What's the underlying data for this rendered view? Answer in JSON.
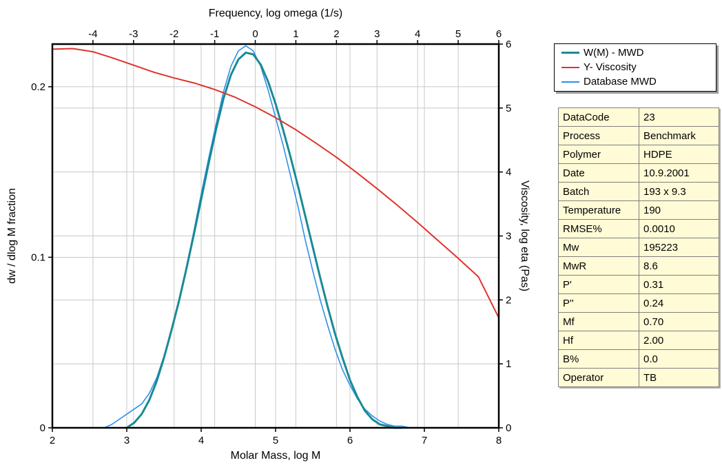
{
  "chart_data": {
    "type": "line",
    "top_axis": {
      "label": "Frequency, log omega (1/s)",
      "range": [
        -5,
        6
      ],
      "ticks": [
        "-4",
        "-3",
        "-2",
        "-1",
        "0",
        "1",
        "2",
        "3",
        "4",
        "5",
        "6"
      ]
    },
    "x_axis": {
      "label": "Molar Mass, log M",
      "range": [
        2,
        8
      ],
      "ticks": [
        "2",
        "3",
        "4",
        "5",
        "6",
        "7",
        "8"
      ]
    },
    "y_left": {
      "label": "dw / dlog M  fraction",
      "range": [
        0,
        0.225
      ],
      "ticks": [
        "0",
        "0.1",
        "0.2"
      ]
    },
    "y_right": {
      "label": "Viscosity, log eta (Pas)",
      "range": [
        0,
        6
      ],
      "ticks": [
        "0",
        "1",
        "2",
        "3",
        "4",
        "5",
        "6"
      ]
    },
    "grid": true,
    "legend_position": "top-right",
    "series": [
      {
        "name": "W(M) - MWD",
        "axis": "left",
        "color": "#1a8a94",
        "x": [
          3.0,
          3.1,
          3.2,
          3.3,
          3.4,
          3.5,
          3.6,
          3.7,
          3.8,
          3.9,
          4.0,
          4.1,
          4.2,
          4.3,
          4.4,
          4.5,
          4.6,
          4.7,
          4.8,
          4.9,
          5.0,
          5.1,
          5.2,
          5.3,
          5.4,
          5.5,
          5.6,
          5.7,
          5.8,
          5.9,
          6.0,
          6.1,
          6.2,
          6.3,
          6.4,
          6.5,
          6.6,
          6.7
        ],
        "y": [
          0.0,
          0.003,
          0.008,
          0.016,
          0.027,
          0.041,
          0.057,
          0.074,
          0.093,
          0.113,
          0.134,
          0.155,
          0.175,
          0.193,
          0.207,
          0.216,
          0.22,
          0.219,
          0.213,
          0.203,
          0.19,
          0.175,
          0.159,
          0.142,
          0.124,
          0.106,
          0.088,
          0.071,
          0.055,
          0.041,
          0.028,
          0.018,
          0.01,
          0.005,
          0.002,
          0.001,
          0.0,
          0.0
        ]
      },
      {
        "name": "Y- Viscosity",
        "axis": "right",
        "color": "#e0322a",
        "x": [
          -5,
          -4.5,
          -4,
          -3.5,
          -3,
          -2.5,
          -2,
          -1.5,
          -1,
          -0.5,
          0,
          0.5,
          1,
          1.5,
          2,
          2.5,
          3,
          3.5,
          4,
          4.5,
          5,
          5.5,
          6
        ],
        "y": [
          5.92,
          5.93,
          5.88,
          5.78,
          5.67,
          5.56,
          5.47,
          5.39,
          5.29,
          5.17,
          5.02,
          4.85,
          4.66,
          4.45,
          4.23,
          3.99,
          3.74,
          3.48,
          3.21,
          2.93,
          2.65,
          2.36,
          1.72
        ]
      },
      {
        "name": "Database MWD",
        "axis": "left",
        "color": "#2c8fe8",
        "x": [
          2.7,
          2.8,
          2.9,
          3.0,
          3.1,
          3.2,
          3.3,
          3.4,
          3.5,
          3.6,
          3.7,
          3.8,
          3.9,
          4.0,
          4.1,
          4.2,
          4.3,
          4.4,
          4.5,
          4.6,
          4.7,
          4.8,
          4.9,
          5.0,
          5.1,
          5.2,
          5.3,
          5.4,
          5.5,
          5.6,
          5.7,
          5.8,
          5.9,
          6.0,
          6.1,
          6.2,
          6.3,
          6.4,
          6.5,
          6.6,
          6.7,
          6.8,
          6.9,
          7.0
        ],
        "y": [
          0.0,
          0.002,
          0.005,
          0.008,
          0.011,
          0.014,
          0.02,
          0.029,
          0.042,
          0.058,
          0.075,
          0.094,
          0.115,
          0.137,
          0.158,
          0.178,
          0.197,
          0.212,
          0.221,
          0.224,
          0.221,
          0.212,
          0.198,
          0.182,
          0.166,
          0.148,
          0.13,
          0.11,
          0.092,
          0.075,
          0.06,
          0.046,
          0.034,
          0.025,
          0.017,
          0.011,
          0.007,
          0.004,
          0.002,
          0.001,
          0.001,
          0.0,
          0.0,
          0.0
        ]
      }
    ]
  },
  "legend": {
    "items": [
      {
        "label": "W(M) - MWD",
        "color": "#1a8a94"
      },
      {
        "label": "Y- Viscosity",
        "color": "#e0322a"
      },
      {
        "label": "Database MWD",
        "color": "#2c8fe8"
      }
    ]
  },
  "info_table": [
    [
      "DataCode",
      "23"
    ],
    [
      "Process",
      "Benchmark"
    ],
    [
      "Polymer",
      "HDPE"
    ],
    [
      "Date",
      "10.9.2001"
    ],
    [
      "Batch",
      "193 x 9.3"
    ],
    [
      "Temperature",
      "190"
    ],
    [
      "RMSE%",
      "0.0010"
    ],
    [
      "Mw",
      "195223"
    ],
    [
      "MwR",
      "8.6"
    ],
    [
      "P'",
      "0.31"
    ],
    [
      "P''",
      "0.24"
    ],
    [
      "Mf",
      "0.70"
    ],
    [
      "Hf",
      "2.00"
    ],
    [
      "B%",
      "0.0"
    ],
    [
      "Operator",
      "TB"
    ]
  ]
}
